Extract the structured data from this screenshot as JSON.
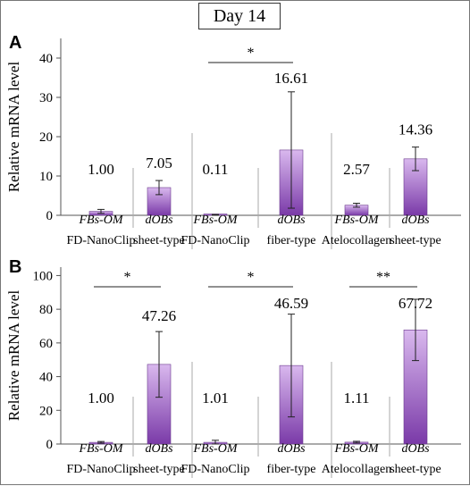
{
  "title": "Day 14",
  "colors": {
    "bar_top": "#d9b8ee",
    "bar_bottom": "#7a3aa8",
    "bar_edge": "#6b3a8e",
    "axis": "#555555",
    "divider": "#aaaaaa"
  },
  "chart_data": [
    {
      "panel": "A",
      "type": "bar",
      "ylabel": "Relative mRNA level",
      "ylim": [
        0,
        45
      ],
      "yticks": [
        0,
        10,
        20,
        30,
        40
      ],
      "groups": [
        "FD-NanoClip sheet-type",
        "FD-NanoClip fiber-type",
        "Atelocollagen sheet-type"
      ],
      "groups_line1": [
        "FD-NanoClip",
        "FD-NanoClip",
        "Atelocollagen"
      ],
      "groups_line2": [
        "sheet-type",
        "fiber-type",
        "sheet-type"
      ],
      "categories": [
        "FBs-OM",
        "dOBs",
        "FBs-OM",
        "dOBs",
        "FBs-OM",
        "dOBs"
      ],
      "values": [
        1.0,
        7.05,
        0.11,
        16.61,
        2.57,
        14.36
      ],
      "errors": [
        0.5,
        1.8,
        0.1,
        14.8,
        0.5,
        3.0
      ],
      "labels": [
        "1.00",
        "7.05",
        "0.11",
        "16.61",
        "2.57",
        "14.36"
      ],
      "significance": [
        {
          "from": 2,
          "to": 3,
          "text": "*"
        }
      ]
    },
    {
      "panel": "B",
      "type": "bar",
      "ylabel": "Relative mRNA level",
      "ylim": [
        0,
        105
      ],
      "yticks": [
        0,
        20,
        40,
        60,
        80,
        100
      ],
      "groups": [
        "FD-NanoClip sheet-type",
        "FD-NanoClip fiber-type",
        "Atelocollagen sheet-type"
      ],
      "groups_line1": [
        "FD-NanoClip",
        "FD-NanoClip",
        "Atelocollagen"
      ],
      "groups_line2": [
        "sheet-type",
        "fiber-type",
        "sheet-type"
      ],
      "categories": [
        "FBs-OM",
        "dOBs",
        "FBs-OM",
        "dOBs",
        "FBs-OM",
        "dOBs"
      ],
      "values": [
        1.0,
        47.26,
        1.01,
        46.59,
        1.11,
        67.72
      ],
      "errors": [
        0.5,
        19.5,
        1.2,
        30.5,
        0.5,
        18.2
      ],
      "labels": [
        "1.00",
        "47.26",
        "1.01",
        "46.59",
        "1.11",
        "67.72"
      ],
      "significance": [
        {
          "from": 0,
          "to": 1,
          "text": "*"
        },
        {
          "from": 2,
          "to": 3,
          "text": "*"
        },
        {
          "from": 4,
          "to": 5,
          "text": "**"
        }
      ]
    }
  ]
}
